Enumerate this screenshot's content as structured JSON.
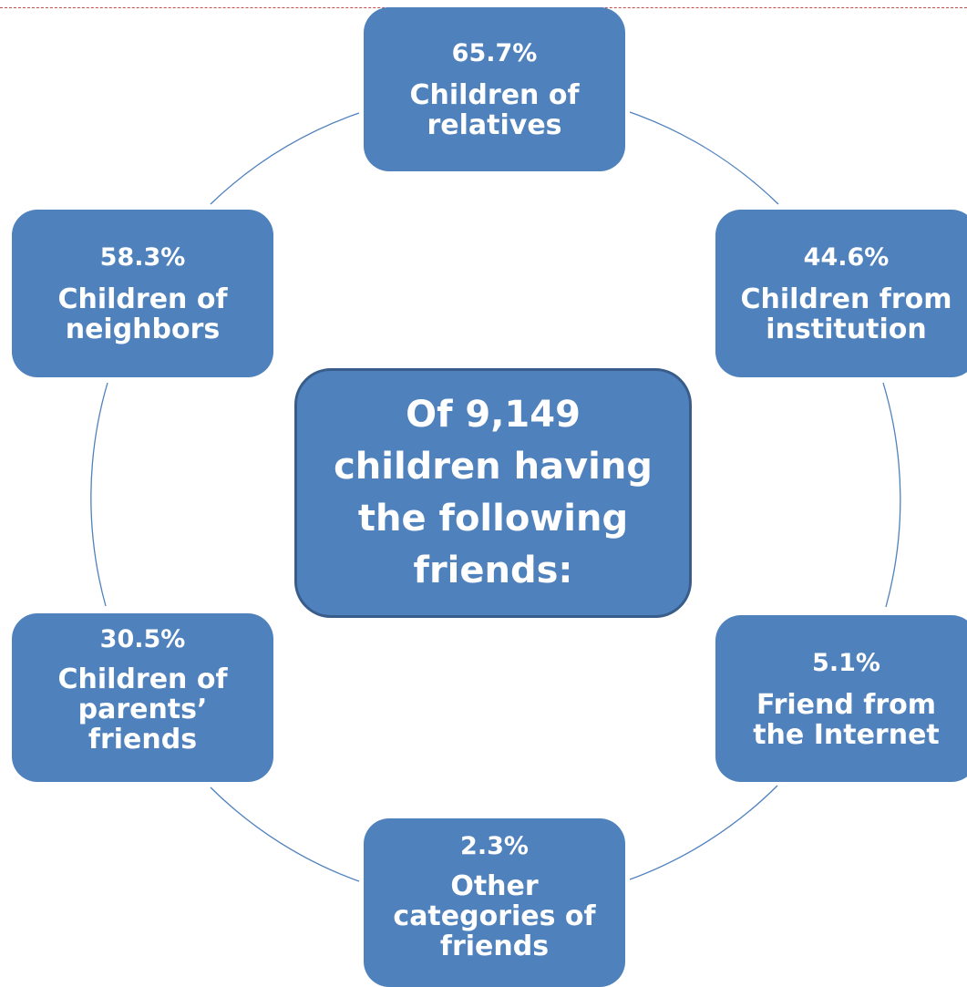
{
  "diagram": {
    "center": {
      "lines": [
        "Of 9,149",
        "children having",
        "the following",
        "friends:"
      ]
    },
    "nodes": {
      "top": {
        "percent": "65.7%",
        "label": "Children of relatives"
      },
      "right1": {
        "percent": "44.6%",
        "label": "Children from institution"
      },
      "right2": {
        "percent": "5.1%",
        "label": "Friend from the Internet"
      },
      "bottom": {
        "percent": "2.3%",
        "label": "Other categories of friends"
      },
      "left2": {
        "percent": "30.5%",
        "label": "Children of parents’ friends"
      },
      "left1": {
        "percent": "58.3%",
        "label": "Children of neighbors"
      }
    }
  },
  "colors": {
    "node_fill": "#4f81bd",
    "center_border": "#385d8a",
    "ring_line": "#4f81bd",
    "top_dashed_border": "#c0504d"
  }
}
